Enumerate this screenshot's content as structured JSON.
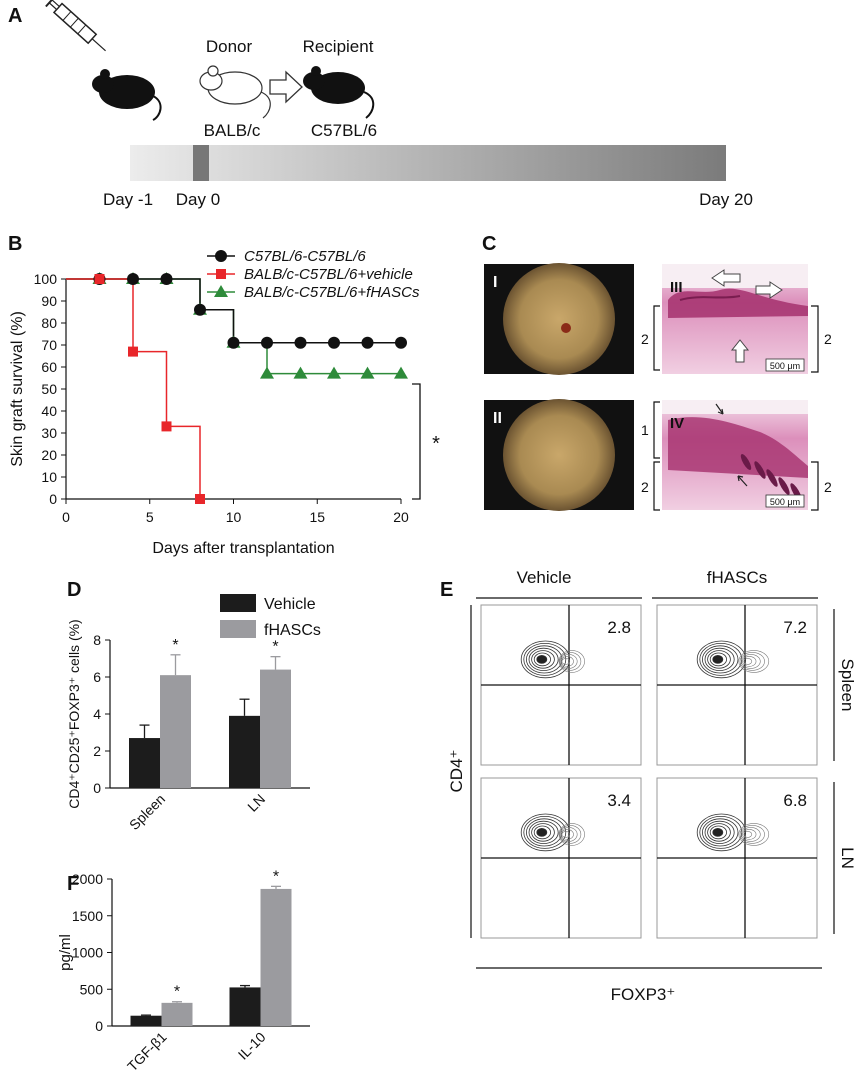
{
  "panel_labels": {
    "a": "A",
    "b": "B",
    "c": "C",
    "d": "D",
    "e": "E",
    "f": "F"
  },
  "timeline": {
    "donor_label": "Donor",
    "recipient_label": "Recipient",
    "donor_strain": "BALB/c",
    "recipient_strain": "C57BL/6",
    "day_labels": [
      "Day -1",
      "Day 0",
      "Day 20"
    ],
    "colors": {
      "donor_mouse": "#ffffff",
      "recipient_mouse": "#111111"
    }
  },
  "histology": {
    "roman_labels": [
      "I",
      "II",
      "III",
      "IV"
    ],
    "scale_bar_text": "500 μm",
    "bracket_labels": [
      "2",
      "2",
      "1",
      "2",
      "2"
    ],
    "colors": {
      "photo": "#a98a52",
      "stain": "#dc8fbb",
      "epidermis": "#a5306d"
    }
  },
  "chart_data": [
    {
      "panel": "B",
      "type": "line",
      "step": true,
      "xlabel": "Days after transplantation",
      "ylabel": "Skin graft survival (%)",
      "xlim": [
        0,
        20
      ],
      "ylim": [
        0,
        100
      ],
      "xticks": [
        0,
        5,
        10,
        15,
        20
      ],
      "yticks": [
        0,
        10,
        20,
        30,
        40,
        50,
        60,
        70,
        80,
        90,
        100
      ],
      "significance": "*",
      "legend_position": "top-right",
      "series": [
        {
          "name": "C57BL/6-C57BL/6",
          "color": "#111111",
          "marker": "circle",
          "x": [
            2,
            4,
            6,
            8,
            10,
            12,
            14,
            16,
            18,
            20
          ],
          "y": [
            100,
            100,
            100,
            86,
            71,
            71,
            71,
            71,
            71,
            71
          ]
        },
        {
          "name": "BALB/c-C57BL/6+vehicle",
          "color": "#e8262a",
          "marker": "square",
          "x": [
            2,
            4,
            6,
            8
          ],
          "y": [
            100,
            67,
            33,
            0
          ]
        },
        {
          "name": "BALB/c-C57BL/6+fHASCs",
          "color": "#2e8b3a",
          "marker": "triangle",
          "x": [
            2,
            4,
            6,
            8,
            10,
            12,
            14,
            16,
            18,
            20
          ],
          "y": [
            100,
            100,
            100,
            86,
            71,
            57,
            57,
            57,
            57,
            57
          ]
        }
      ]
    },
    {
      "panel": "D",
      "type": "bar",
      "categories": [
        "Spleen",
        "LN"
      ],
      "ylabel": "CD4⁺CD25⁺FOXP3⁺ cells (%)",
      "ylim": [
        0,
        8
      ],
      "yticks": [
        0,
        2,
        4,
        6,
        8
      ],
      "legend_position": "top",
      "significance": [
        "*",
        "*"
      ],
      "series": [
        {
          "name": "Vehicle",
          "color": "#1c1c1c",
          "values": [
            2.7,
            3.9
          ],
          "errors": [
            0.7,
            0.9
          ]
        },
        {
          "name": "fHASCs",
          "color": "#9b9b9f",
          "values": [
            6.1,
            6.4
          ],
          "errors": [
            1.1,
            0.7
          ]
        }
      ]
    },
    {
      "panel": "F",
      "type": "bar",
      "categories": [
        "TGF-β1",
        "IL-10"
      ],
      "ylabel": "pg/ml",
      "ylim": [
        0,
        2000
      ],
      "yticks": [
        0,
        500,
        1000,
        1500,
        2000
      ],
      "significance": [
        "*",
        "*"
      ],
      "series": [
        {
          "name": "Vehicle",
          "color": "#1c1c1c",
          "values": [
            140,
            525
          ],
          "errors": [
            8,
            25
          ]
        },
        {
          "name": "fHASCs",
          "color": "#9b9b9f",
          "values": [
            315,
            1865
          ],
          "errors": [
            15,
            35
          ]
        }
      ]
    },
    {
      "panel": "E",
      "type": "scatter",
      "subtype": "flow-cytometry-contour",
      "column_labels": [
        "Vehicle",
        "fHASCs"
      ],
      "row_labels": [
        "Spleen",
        "LN"
      ],
      "xlabel": "FOXP3⁺",
      "ylabel": "CD4⁺",
      "quadrant_values": [
        [
          "2.8",
          "7.2"
        ],
        [
          "3.4",
          "6.8"
        ]
      ]
    }
  ]
}
